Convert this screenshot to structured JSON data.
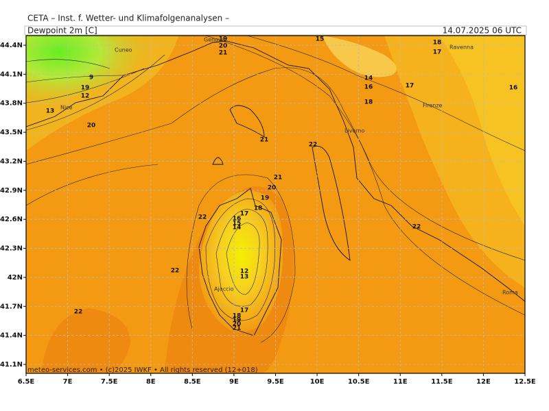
{
  "header": {
    "institute": "CETA – Inst. f. Wetter- und Klimafolgenanalysen –",
    "parameter": "Dewpoint 2m [C]",
    "valid_time": "14.07.2025 06 UTC"
  },
  "map": {
    "xticks": [
      "6.5E",
      "7E",
      "7.5E",
      "8E",
      "8.5E",
      "9E",
      "9.5E",
      "10E",
      "10.5E",
      "11E",
      "11.5E",
      "12E",
      "12.5E"
    ],
    "yticks": [
      "44.4N",
      "44.1N",
      "43.8N",
      "43.5N",
      "43.2N",
      "42.9N",
      "42.6N",
      "42.3N",
      "42N",
      "41.7N",
      "41.4N",
      "41.1N"
    ],
    "contour_labels": [
      "9",
      "19",
      "12",
      "13",
      "20",
      "19",
      "20",
      "21",
      "15",
      "18",
      "17",
      "14",
      "16",
      "17",
      "18",
      "16",
      "21",
      "22",
      "21",
      "20",
      "19",
      "18",
      "17",
      "16",
      "15",
      "14",
      "22",
      "22",
      "12",
      "13",
      "17",
      "18",
      "19",
      "20",
      "21",
      "22",
      "22"
    ],
    "cities": [
      "Cuneo",
      "Genova",
      "Ravenna",
      "Firenze",
      "Nice",
      "Livorno",
      "Ajaccio",
      "Roma"
    ],
    "footer": "meteo-services.com • (c)2025 IWKF • All rights reserved (12+018)"
  }
}
